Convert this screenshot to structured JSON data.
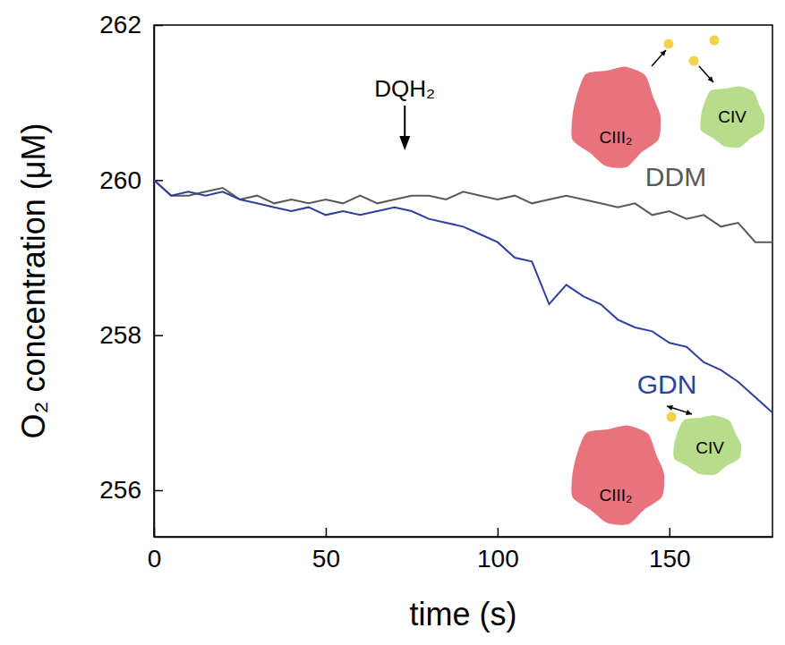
{
  "chart_data": {
    "type": "line",
    "x_label": "time (s)",
    "y_label": "O₂ concentration (μM)",
    "x": [
      0,
      5,
      10,
      15,
      20,
      25,
      30,
      35,
      40,
      45,
      50,
      55,
      60,
      65,
      70,
      75,
      80,
      85,
      90,
      95,
      100,
      105,
      110,
      115,
      120,
      125,
      130,
      135,
      140,
      145,
      150,
      155,
      160,
      165,
      170,
      175,
      180
    ],
    "series": [
      {
        "name": "DDM",
        "color": "#595959",
        "values": [
          260.0,
          259.8,
          259.8,
          259.85,
          259.9,
          259.75,
          259.8,
          259.7,
          259.75,
          259.7,
          259.75,
          259.7,
          259.8,
          259.7,
          259.75,
          259.8,
          259.8,
          259.75,
          259.85,
          259.8,
          259.75,
          259.8,
          259.7,
          259.75,
          259.8,
          259.75,
          259.7,
          259.65,
          259.7,
          259.55,
          259.6,
          259.5,
          259.55,
          259.4,
          259.45,
          259.2,
          259.2
        ]
      },
      {
        "name": "GDN",
        "color": "#2e3fa0",
        "values": [
          260.0,
          259.8,
          259.85,
          259.8,
          259.85,
          259.75,
          259.7,
          259.65,
          259.6,
          259.65,
          259.55,
          259.6,
          259.55,
          259.6,
          259.65,
          259.6,
          259.5,
          259.45,
          259.4,
          259.3,
          259.2,
          259.0,
          258.95,
          258.4,
          258.65,
          258.5,
          258.4,
          258.2,
          258.1,
          258.05,
          257.9,
          257.85,
          257.65,
          257.55,
          257.4,
          257.2,
          257.0
        ]
      }
    ],
    "xlim": [
      0,
      180
    ],
    "xticks": [
      0,
      50,
      100,
      150
    ],
    "ylim": [
      255.4,
      262
    ],
    "yticks": [
      256,
      258,
      260,
      262
    ],
    "annotations": [
      {
        "text": "DQH₂",
        "x": 73
      },
      {
        "text": "CIII₂"
      },
      {
        "text": "CIV"
      },
      {
        "text": "CIII₂"
      },
      {
        "text": "CIV"
      }
    ]
  }
}
